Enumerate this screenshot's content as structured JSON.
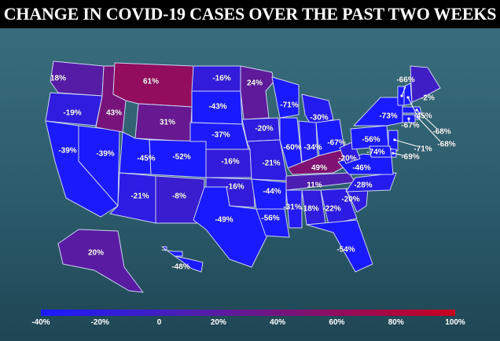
{
  "title": "CHANGE IN COVID-19 CASES OVER THE PAST TWO WEEKS",
  "colors": {
    "low": "#1a1aff",
    "mid": "#4a1fb4",
    "high": "#c8001e",
    "border": "#c9d3f0"
  },
  "scale": {
    "min": -40,
    "max": 100
  },
  "legend": {
    "ticks": [
      "-40%",
      "-20%",
      "0",
      "20%",
      "40%",
      "60%",
      "80%",
      "100%"
    ]
  },
  "states": [
    {
      "id": "WA",
      "label": "18%",
      "value": 18
    },
    {
      "id": "OR",
      "label": "-19%",
      "value": -19
    },
    {
      "id": "CA",
      "label": "-39%",
      "value": -39
    },
    {
      "id": "NV",
      "label": "-39%",
      "value": -39
    },
    {
      "id": "ID",
      "label": "43%",
      "value": 43
    },
    {
      "id": "MT",
      "label": "61%",
      "value": 61
    },
    {
      "id": "WY",
      "label": "31%",
      "value": 31
    },
    {
      "id": "UT",
      "label": "-45%",
      "value": -45
    },
    {
      "id": "AZ",
      "label": "-21%",
      "value": -21
    },
    {
      "id": "CO",
      "label": "-52%",
      "value": -52
    },
    {
      "id": "NM",
      "label": "-8%",
      "value": -8
    },
    {
      "id": "ND",
      "label": "-16%",
      "value": -16
    },
    {
      "id": "SD",
      "label": "-43%",
      "value": -43
    },
    {
      "id": "NE",
      "label": "-37%",
      "value": -37
    },
    {
      "id": "KS",
      "label": "-16%",
      "value": -16
    },
    {
      "id": "OK",
      "label": "-16%",
      "value": -16
    },
    {
      "id": "TX",
      "label": "-49%",
      "value": -49
    },
    {
      "id": "MN",
      "label": "24%",
      "value": 24
    },
    {
      "id": "IA",
      "label": "-20%",
      "value": -20
    },
    {
      "id": "MO",
      "label": "-21%",
      "value": -21
    },
    {
      "id": "AR",
      "label": "-44%",
      "value": -44
    },
    {
      "id": "LA",
      "label": "-56%",
      "value": -56
    },
    {
      "id": "WI",
      "label": "-71%",
      "value": -71
    },
    {
      "id": "MI",
      "label": "-30%",
      "value": -30
    },
    {
      "id": "IL",
      "label": "-60%",
      "value": -60
    },
    {
      "id": "IN",
      "label": "-34%",
      "value": -34
    },
    {
      "id": "OH",
      "label": "-67%",
      "value": -67
    },
    {
      "id": "KY",
      "label": "49%",
      "value": 49
    },
    {
      "id": "TN",
      "label": "11%",
      "value": 11
    },
    {
      "id": "MS",
      "label": "-31%",
      "value": -31
    },
    {
      "id": "AL",
      "label": "-18%",
      "value": -18
    },
    {
      "id": "GA",
      "label": "-22%",
      "value": -22
    },
    {
      "id": "FL",
      "label": "-54%",
      "value": -54
    },
    {
      "id": "SC",
      "label": "-20%",
      "value": -20
    },
    {
      "id": "NC",
      "label": "-28%",
      "value": -28
    },
    {
      "id": "VA",
      "label": "-46%",
      "value": -46
    },
    {
      "id": "WV",
      "label": "-20%",
      "value": -20
    },
    {
      "id": "PA",
      "label": "-56%",
      "value": -56
    },
    {
      "id": "NY",
      "label": "-73%",
      "value": -73
    },
    {
      "id": "VT",
      "label": "-66%",
      "value": -66
    },
    {
      "id": "ME",
      "label": "-2%",
      "value": -2
    },
    {
      "id": "NH",
      "label": "-45%",
      "value": -45
    },
    {
      "id": "MA",
      "label": "-68%",
      "value": -68
    },
    {
      "id": "RI",
      "label": "-68%",
      "value": -68
    },
    {
      "id": "CT",
      "label": "-67%",
      "value": -67
    },
    {
      "id": "NJ",
      "label": "-71%",
      "value": -71
    },
    {
      "id": "DE",
      "label": "-69%",
      "value": -69
    },
    {
      "id": "MD",
      "label": "-74%",
      "value": -74
    },
    {
      "id": "AK",
      "label": "20%",
      "value": 20
    },
    {
      "id": "HI",
      "label": "-48%",
      "value": -48
    }
  ]
}
